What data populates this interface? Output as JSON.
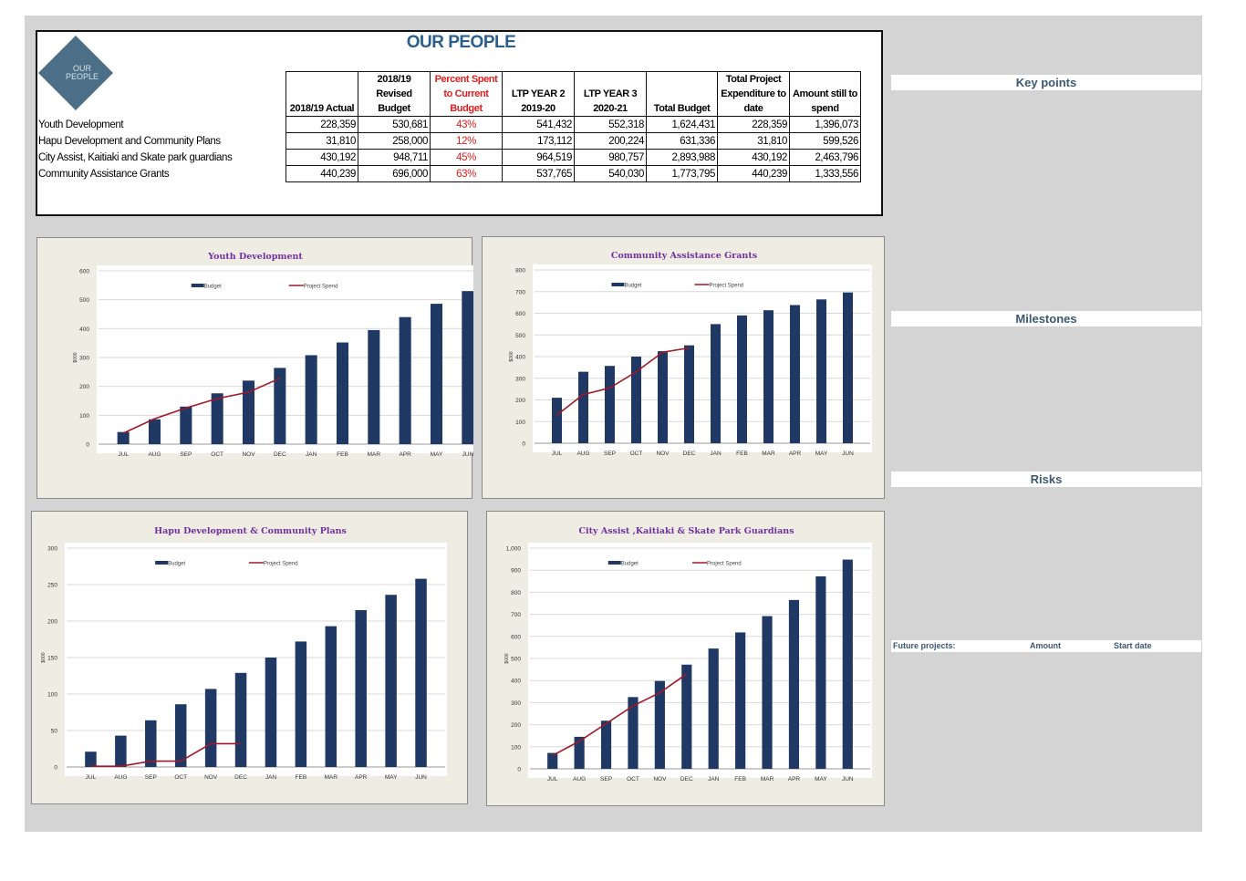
{
  "summary": {
    "title": "OUR PEOPLE",
    "logo_text": [
      "OUR",
      "PEOPLE"
    ],
    "headers": [
      "2018/19 Actual",
      "2018/19 Revised Budget",
      "Percent Spent to Current Budget",
      "LTP YEAR 2 2019-20",
      "LTP YEAR 3 2020-21",
      "Total Budget",
      "Total Project Expenditure to date",
      "Amount still to spend"
    ],
    "rows": [
      {
        "label": "Youth Development",
        "values": [
          "228,359",
          "530,681",
          "43%",
          "541,432",
          "552,318",
          "1,624,431",
          "228,359",
          "1,396,073"
        ]
      },
      {
        "label": "Hapu Development and Community Plans",
        "values": [
          "31,810",
          "258,000",
          "12%",
          "173,112",
          "200,224",
          "631,336",
          "31,810",
          "599,526"
        ]
      },
      {
        "label": "City Assist, Kaitiaki and Skate park guardians",
        "values": [
          "430,192",
          "948,711",
          "45%",
          "964,519",
          "980,757",
          "2,893,988",
          "430,192",
          "2,463,796"
        ]
      },
      {
        "label": "Community Assistance Grants",
        "values": [
          "440,239",
          "696,000",
          "63%",
          "537,765",
          "540,030",
          "1,773,795",
          "440,239",
          "1,333,556"
        ]
      }
    ]
  },
  "side": {
    "key_points": "Key points",
    "milestones": "Milestones",
    "risks": "Risks",
    "future_projects": "Future projects:",
    "amount": "Amount",
    "start_date": "Start date"
  },
  "colors": {
    "budget": "#1f3864",
    "spend": "#a01828",
    "title": "#7030a0"
  },
  "chart_data": [
    {
      "type": "bar",
      "title": "Youth Development",
      "ylabel": "$000",
      "categories": [
        "JUL",
        "AUG",
        "SEP",
        "OCT",
        "NOV",
        "DEC",
        "JAN",
        "FEB",
        "MAR",
        "APR",
        "MAY",
        "JUN"
      ],
      "ylim": [
        0,
        600
      ],
      "yticks": [
        "0",
        "100",
        "200",
        "300",
        "400",
        "500",
        "600"
      ],
      "series": [
        {
          "name": "Budget",
          "kind": "bar",
          "values": [
            42,
            86,
            130,
            176,
            220,
            264,
            308,
            352,
            395,
            440,
            486,
            530
          ]
        },
        {
          "name": "Project Spend",
          "kind": "line",
          "values": [
            38,
            88,
            125,
            158,
            180,
            228,
            null,
            null,
            null,
            null,
            null,
            null
          ]
        }
      ],
      "legend": "top"
    },
    {
      "type": "bar",
      "title": "Community Assistance  Grants",
      "ylabel": "$000",
      "categories": [
        "JUL",
        "AUG",
        "SEP",
        "OCT",
        "NOV",
        "DEC",
        "JAN",
        "FEB",
        "MAR",
        "APR",
        "MAY",
        "JUN"
      ],
      "ylim": [
        0,
        800
      ],
      "yticks": [
        "0",
        "100",
        "200",
        "300",
        "400",
        "500",
        "600",
        "700",
        "800"
      ],
      "series": [
        {
          "name": "Budget",
          "kind": "bar",
          "values": [
            210,
            330,
            357,
            400,
            425,
            452,
            550,
            590,
            614,
            638,
            664,
            696
          ]
        },
        {
          "name": "Project Spend",
          "kind": "line",
          "values": [
            130,
            225,
            255,
            330,
            420,
            440,
            null,
            null,
            null,
            null,
            null,
            null
          ]
        }
      ],
      "legend": "top"
    },
    {
      "type": "bar",
      "title": "Hapu Development & Community Plans",
      "ylabel": "$000",
      "categories": [
        "JUL",
        "AUG",
        "SEP",
        "OCT",
        "NOV",
        "DEC",
        "JAN",
        "FEB",
        "MAR",
        "APR",
        "MAY",
        "JUN"
      ],
      "ylim": [
        0,
        300
      ],
      "yticks": [
        "0",
        "50",
        "100",
        "150",
        "200",
        "250",
        "300"
      ],
      "series": [
        {
          "name": "Budget",
          "kind": "bar",
          "values": [
            21,
            43,
            64,
            86,
            107,
            129,
            150,
            172,
            193,
            215,
            236,
            258
          ]
        },
        {
          "name": "Project Spend",
          "kind": "line",
          "values": [
            1,
            1,
            8,
            8,
            32,
            32,
            null,
            null,
            null,
            null,
            null,
            null
          ]
        }
      ],
      "legend": "top"
    },
    {
      "type": "bar",
      "title": "City Assist ,Kaitiaki & Skate Park Guardians",
      "ylabel": "$000",
      "categories": [
        "JUL",
        "AUG",
        "SEP",
        "OCT",
        "NOV",
        "DEC",
        "JAN",
        "FEB",
        "MAR",
        "APR",
        "MAY",
        "JUN"
      ],
      "ylim": [
        0,
        1000
      ],
      "yticks": [
        "0",
        "100",
        "200",
        "300",
        "400",
        "500",
        "600",
        "700",
        "800",
        "900",
        "1,000"
      ],
      "series": [
        {
          "name": "Budget",
          "kind": "bar",
          "values": [
            72,
            145,
            218,
            325,
            398,
            472,
            545,
            618,
            692,
            765,
            872,
            948
          ]
        },
        {
          "name": "Project Spend",
          "kind": "line",
          "values": [
            60,
            125,
            205,
            285,
            345,
            430,
            null,
            null,
            null,
            null,
            null,
            null
          ]
        }
      ],
      "legend": "top"
    }
  ]
}
